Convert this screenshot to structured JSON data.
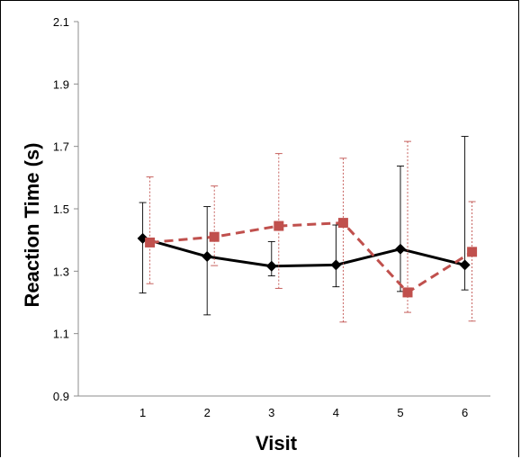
{
  "chart_data": {
    "type": "line",
    "title": "",
    "xlabel": "Visit",
    "ylabel": "Reaction Time (s)",
    "x": [
      1,
      2,
      3,
      4,
      5,
      6
    ],
    "xlim": [
      0,
      6.5
    ],
    "ylim": [
      0.9,
      2.1
    ],
    "yticks": [
      "0.9",
      "1.1",
      "1.3",
      "1.5",
      "1.7",
      "1.9",
      "2.1"
    ],
    "xticks": [
      "1",
      "2",
      "3",
      "4",
      "5",
      "6"
    ],
    "grid": false,
    "legend": "none",
    "series": [
      {
        "color": "#000000",
        "line_style": "solid",
        "marker": "diamond",
        "values": [
          1.405,
          1.347,
          1.316,
          1.32,
          1.371,
          1.32
        ],
        "err_low": [
          1.23,
          1.16,
          1.285,
          1.25,
          1.235,
          1.24
        ],
        "err_high": [
          1.52,
          1.507,
          1.395,
          1.448,
          1.637,
          1.732
        ]
      },
      {
        "color": "#c0504d",
        "line_style": "dashed",
        "marker": "square",
        "values": [
          1.392,
          1.41,
          1.445,
          1.455,
          1.232,
          1.362
        ],
        "err_low": [
          1.26,
          1.318,
          1.245,
          1.137,
          1.168,
          1.14
        ],
        "err_high": [
          1.602,
          1.573,
          1.677,
          1.662,
          1.716,
          1.523
        ]
      }
    ]
  }
}
